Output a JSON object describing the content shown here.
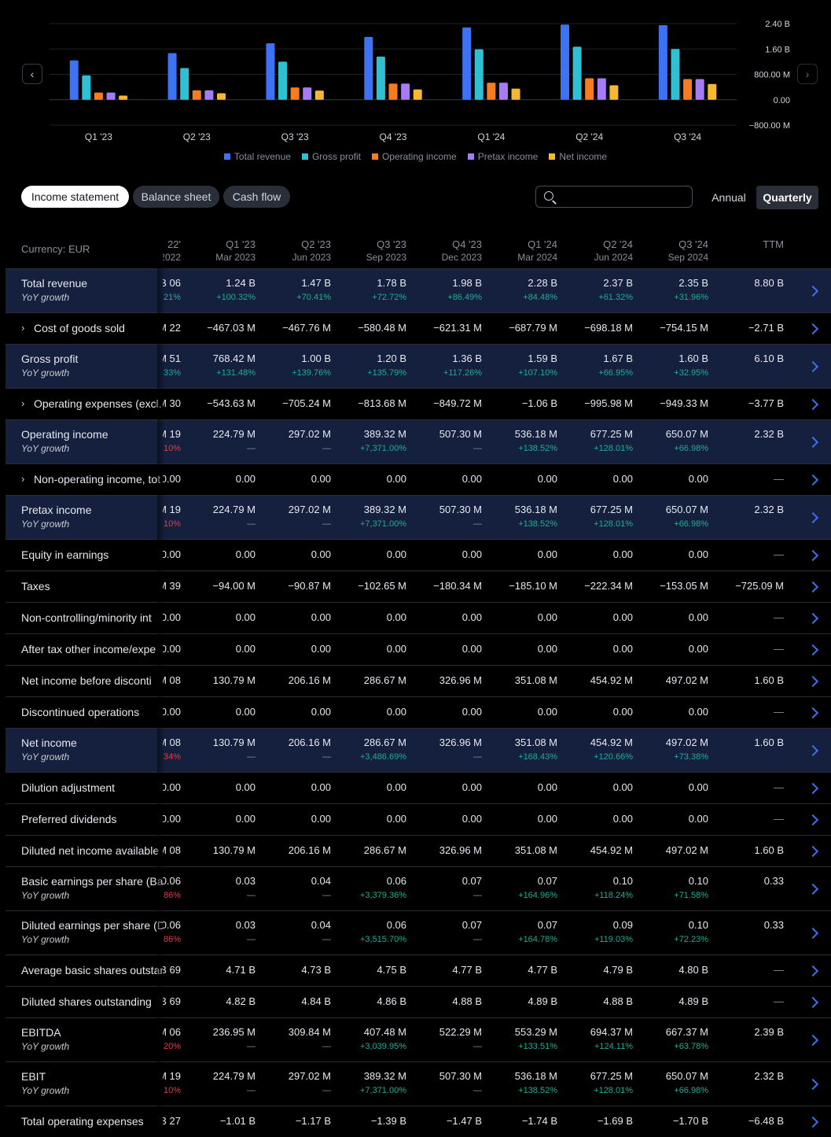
{
  "chart_data": {
    "type": "bar",
    "categories": [
      "Q1 '23",
      "Q2 '23",
      "Q3 '23",
      "Q4 '23",
      "Q1 '24",
      "Q2 '24",
      "Q3 '24"
    ],
    "series": [
      {
        "name": "Total revenue",
        "color": "#3d72f5",
        "values": [
          1.24,
          1.47,
          1.78,
          1.98,
          2.28,
          2.37,
          2.35
        ]
      },
      {
        "name": "Gross profit",
        "color": "#2fc1d3",
        "values": [
          0.768,
          1.0,
          1.2,
          1.36,
          1.59,
          1.67,
          1.6
        ]
      },
      {
        "name": "Operating income",
        "color": "#f57c1f",
        "values": [
          0.225,
          0.297,
          0.389,
          0.507,
          0.536,
          0.677,
          0.65
        ]
      },
      {
        "name": "Pretax income",
        "color": "#a77bf5",
        "values": [
          0.225,
          0.297,
          0.389,
          0.507,
          0.536,
          0.677,
          0.65
        ]
      },
      {
        "name": "Net income",
        "color": "#f7b831",
        "values": [
          0.131,
          0.206,
          0.287,
          0.327,
          0.351,
          0.455,
          0.497
        ]
      }
    ],
    "yticks": [
      "2.40 B",
      "1.60 B",
      "800.00 M",
      "0.00",
      "−800.00 M"
    ],
    "ylim": [
      -0.8,
      2.4
    ],
    "unit": "B EUR",
    "grid": true,
    "legend_position": "bottom"
  },
  "nav": {
    "prev_icon": "‹",
    "next_icon": "›"
  },
  "tabs": [
    {
      "label": "Income statement",
      "active": true
    },
    {
      "label": "Balance sheet",
      "active": false
    },
    {
      "label": "Cash flow",
      "active": false
    }
  ],
  "search": {
    "placeholder": ""
  },
  "period": {
    "annual": "Annual",
    "quarterly": "Quarterly",
    "selected": "Quarterly"
  },
  "table": {
    "currency_label": "Currency: EUR",
    "partial_header": {
      "q": "'22",
      "d": "2022"
    },
    "columns": [
      {
        "q": "Q1 '23",
        "d": "Mar 2023"
      },
      {
        "q": "Q2 '23",
        "d": "Jun 2023"
      },
      {
        "q": "Q3 '23",
        "d": "Sep 2023"
      },
      {
        "q": "Q4 '23",
        "d": "Dec 2023"
      },
      {
        "q": "Q1 '24",
        "d": "Mar 2024"
      },
      {
        "q": "Q2 '24",
        "d": "Jun 2024"
      },
      {
        "q": "Q3 '24",
        "d": "Sep 2024"
      },
      {
        "q": "TTM",
        "d": ""
      }
    ],
    "rows": [
      {
        "label": "Total revenue",
        "hl": true,
        "color": "#3d72f5",
        "sub_label": "YoY growth",
        "partial": "06 B",
        "partial_sub": "21%",
        "partial_sub_type": "pos",
        "values": [
          "1.24 B",
          "1.47 B",
          "1.78 B",
          "1.98 B",
          "2.28 B",
          "2.37 B",
          "2.35 B",
          "8.80 B"
        ],
        "subs": [
          "+100.32%",
          "+70.41%",
          "+72.72%",
          "+86.49%",
          "+84.48%",
          "+61.32%",
          "+31.96%",
          ""
        ]
      },
      {
        "label": "Cost of goods sold",
        "expand": true,
        "partial": "22 M",
        "values": [
          "−467.03 M",
          "−467.76 M",
          "−580.48 M",
          "−621.31 M",
          "−687.79 M",
          "−698.18 M",
          "−754.15 M",
          "−2.71 B"
        ]
      },
      {
        "label": "Gross profit",
        "hl": true,
        "color": "#2fc1d3",
        "sub_label": "YoY growth",
        "partial": "51 M",
        "partial_sub": "33%",
        "partial_sub_type": "pos",
        "values": [
          "768.42 M",
          "1.00 B",
          "1.20 B",
          "1.36 B",
          "1.59 B",
          "1.67 B",
          "1.60 B",
          "6.10 B"
        ],
        "subs": [
          "+131.48%",
          "+139.76%",
          "+135.79%",
          "+117.26%",
          "+107.10%",
          "+66.95%",
          "+32.95%",
          ""
        ]
      },
      {
        "label": "Operating expenses (excl.",
        "expand": true,
        "partial": "30 M",
        "values": [
          "−543.63 M",
          "−705.24 M",
          "−813.68 M",
          "−849.72 M",
          "−1.06 B",
          "−995.98 M",
          "−949.33 M",
          "−3.77 B"
        ]
      },
      {
        "label": "Operating income",
        "hl": true,
        "color": "#f57c1f",
        "sub_label": "YoY growth",
        "partial": "19 M",
        "partial_sub": "10%",
        "partial_sub_type": "neg",
        "values": [
          "224.79 M",
          "297.02 M",
          "389.32 M",
          "507.30 M",
          "536.18 M",
          "677.25 M",
          "650.07 M",
          "2.32 B"
        ],
        "subs": [
          "—",
          "—",
          "+7,371.00%",
          "—",
          "+138.52%",
          "+128.01%",
          "+66.98%",
          ""
        ]
      },
      {
        "label": "Non-operating income, tot",
        "expand": true,
        "partial": "0.00",
        "values": [
          "0.00",
          "0.00",
          "0.00",
          "0.00",
          "0.00",
          "0.00",
          "0.00",
          "—"
        ]
      },
      {
        "label": "Pretax income",
        "hl": true,
        "color": "#a77bf5",
        "sub_label": "YoY growth",
        "partial": "19 M",
        "partial_sub": "10%",
        "partial_sub_type": "neg",
        "values": [
          "224.79 M",
          "297.02 M",
          "389.32 M",
          "507.30 M",
          "536.18 M",
          "677.25 M",
          "650.07 M",
          "2.32 B"
        ],
        "subs": [
          "—",
          "—",
          "+7,371.00%",
          "—",
          "+138.52%",
          "+128.01%",
          "+66.98%",
          ""
        ]
      },
      {
        "label": "Equity in earnings",
        "partial": "0.00",
        "values": [
          "0.00",
          "0.00",
          "0.00",
          "0.00",
          "0.00",
          "0.00",
          "0.00",
          "—"
        ]
      },
      {
        "label": "Taxes",
        "partial": "39 M",
        "values": [
          "−94.00 M",
          "−90.87 M",
          "−102.65 M",
          "−180.34 M",
          "−185.10 M",
          "−222.34 M",
          "−153.05 M",
          "−725.09 M"
        ]
      },
      {
        "label": "Non-controlling/minority int",
        "partial": "0.00",
        "values": [
          "0.00",
          "0.00",
          "0.00",
          "0.00",
          "0.00",
          "0.00",
          "0.00",
          "—"
        ]
      },
      {
        "label": "After tax other income/expe",
        "partial": "0.00",
        "values": [
          "0.00",
          "0.00",
          "0.00",
          "0.00",
          "0.00",
          "0.00",
          "0.00",
          "—"
        ]
      },
      {
        "label": "Net income before disconti",
        "partial": "08 M",
        "values": [
          "130.79 M",
          "206.16 M",
          "286.67 M",
          "326.96 M",
          "351.08 M",
          "454.92 M",
          "497.02 M",
          "1.60 B"
        ]
      },
      {
        "label": "Discontinued operations",
        "partial": "0.00",
        "values": [
          "0.00",
          "0.00",
          "0.00",
          "0.00",
          "0.00",
          "0.00",
          "0.00",
          "—"
        ]
      },
      {
        "label": "Net income",
        "hl": true,
        "color": "#f7b831",
        "sub_label": "YoY growth",
        "partial": "08 M",
        "partial_sub": "34%",
        "partial_sub_type": "neg",
        "values": [
          "130.79 M",
          "206.16 M",
          "286.67 M",
          "326.96 M",
          "351.08 M",
          "454.92 M",
          "497.02 M",
          "1.60 B"
        ],
        "subs": [
          "—",
          "—",
          "+3,486.69%",
          "—",
          "+168.43%",
          "+120.66%",
          "+73.38%",
          ""
        ]
      },
      {
        "label": "Dilution adjustment",
        "partial": "0.00",
        "values": [
          "0.00",
          "0.00",
          "0.00",
          "0.00",
          "0.00",
          "0.00",
          "0.00",
          "—"
        ]
      },
      {
        "label": "Preferred dividends",
        "partial": "0.00",
        "values": [
          "0.00",
          "0.00",
          "0.00",
          "0.00",
          "0.00",
          "0.00",
          "0.00",
          "—"
        ]
      },
      {
        "label": "Diluted net income available",
        "partial": "08 M",
        "values": [
          "130.79 M",
          "206.16 M",
          "286.67 M",
          "326.96 M",
          "351.08 M",
          "454.92 M",
          "497.02 M",
          "1.60 B"
        ]
      },
      {
        "label": "Basic earnings per share (Ba",
        "sub_label": "YoY growth",
        "partial": "0.06",
        "partial_sub": "86%",
        "partial_sub_type": "neg",
        "values": [
          "0.03",
          "0.04",
          "0.06",
          "0.07",
          "0.07",
          "0.10",
          "0.10",
          "0.33"
        ],
        "subs": [
          "—",
          "—",
          "+3,379.36%",
          "—",
          "+164.96%",
          "+118.24%",
          "+71.58%",
          ""
        ]
      },
      {
        "label": "Diluted earnings per share (D",
        "sub_label": "YoY growth",
        "partial": "0.06",
        "partial_sub": "86%",
        "partial_sub_type": "neg",
        "values": [
          "0.03",
          "0.04",
          "0.06",
          "0.07",
          "0.07",
          "0.09",
          "0.10",
          "0.33"
        ],
        "subs": [
          "—",
          "—",
          "+3,515.70%",
          "—",
          "+164.78%",
          "+119.03%",
          "+72.23%",
          ""
        ]
      },
      {
        "label": "Average basic shares outstan",
        "partial": "69 B",
        "values": [
          "4.71 B",
          "4.73 B",
          "4.75 B",
          "4.77 B",
          "4.77 B",
          "4.79 B",
          "4.80 B",
          "—"
        ]
      },
      {
        "label": "Diluted shares outstanding",
        "partial": "69 B",
        "values": [
          "4.82 B",
          "4.84 B",
          "4.86 B",
          "4.88 B",
          "4.89 B",
          "4.88 B",
          "4.89 B",
          "—"
        ]
      },
      {
        "label": "EBITDA",
        "sub_label": "YoY growth",
        "partial": "06 M",
        "partial_sub": "20%",
        "partial_sub_type": "neg",
        "values": [
          "236.95 M",
          "309.84 M",
          "407.48 M",
          "522.29 M",
          "553.29 M",
          "694.37 M",
          "667.37 M",
          "2.39 B"
        ],
        "subs": [
          "—",
          "—",
          "+3,039.95%",
          "—",
          "+133.51%",
          "+124.11%",
          "+63.78%",
          ""
        ]
      },
      {
        "label": "EBIT",
        "sub_label": "YoY growth",
        "partial": "19 M",
        "partial_sub": "10%",
        "partial_sub_type": "neg",
        "values": [
          "224.79 M",
          "297.02 M",
          "389.32 M",
          "507.30 M",
          "536.18 M",
          "677.25 M",
          "650.07 M",
          "2.32 B"
        ],
        "subs": [
          "—",
          "—",
          "+7,371.00%",
          "—",
          "+138.52%",
          "+128.01%",
          "+66.98%",
          ""
        ]
      },
      {
        "label": "Total operating expenses",
        "partial": "27 B",
        "values": [
          "−1.01 B",
          "−1.17 B",
          "−1.39 B",
          "−1.47 B",
          "−1.74 B",
          "−1.69 B",
          "−1.70 B",
          "−6.48 B"
        ]
      }
    ]
  }
}
